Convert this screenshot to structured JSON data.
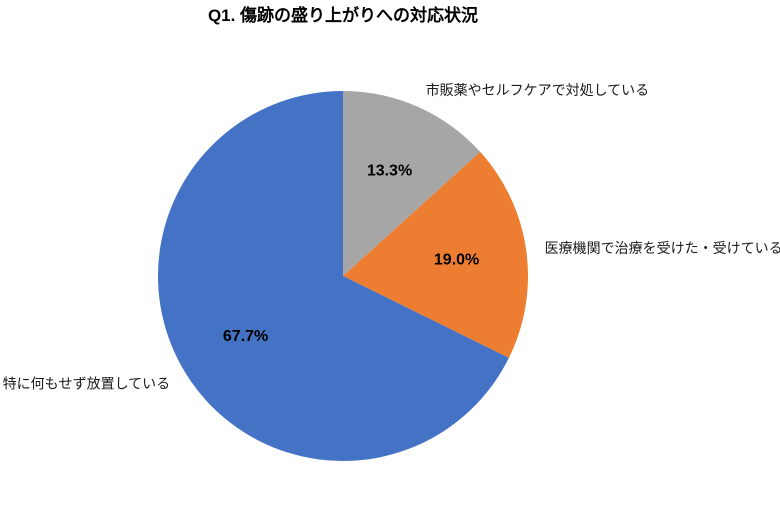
{
  "chart_data": {
    "type": "pie",
    "title": "Q1. 傷跡の盛り上がりへの対応状況",
    "unit": "%",
    "start_angle_deg": 0,
    "direction": "clockwise",
    "legend_position": "none",
    "grid": false,
    "background_color": "#FFFFFF",
    "text_color": "#000000",
    "slices": [
      {
        "label": "市販薬やセルフケアで対処している",
        "value": 13.3,
        "value_label": "13.3%",
        "color": "#A6A6A6"
      },
      {
        "label": "医療機関で治療を受けた・受けている",
        "value": 19.0,
        "value_label": "19.0%",
        "color": "#ED7D31"
      },
      {
        "label": "特に何もせず放置している",
        "value": 67.7,
        "value_label": "67.7%",
        "color": "#4472C4"
      }
    ]
  }
}
